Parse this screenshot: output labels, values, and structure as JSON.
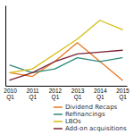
{
  "chart_data": {
    "type": "line",
    "categories": [
      "2010\nQ1",
      "2011\nQ1",
      "2012\nQ1",
      "2013\nQ1",
      "2014\nQ1",
      "2015\nQ1"
    ],
    "series": [
      {
        "name": "Dividend Recaps",
        "color": "#E87820",
        "values": [
          22,
          20,
          28,
          38,
          28,
          18
        ]
      },
      {
        "name": "Refinancings",
        "color": "#2E8B7A",
        "values": [
          26,
          22,
          24,
          30,
          28,
          30
        ]
      },
      {
        "name": "LBOs",
        "color": "#D4BE10",
        "values": [
          22,
          24,
          32,
          40,
          50,
          45
        ]
      },
      {
        "name": "Add-on acquisitions",
        "color": "#7B2030",
        "values": [
          18,
          22,
          28,
          32,
          33,
          34
        ]
      }
    ],
    "ylim": [
      15,
      58
    ],
    "yticks": [],
    "grid": false,
    "tick_labels": "x",
    "legend": "lower right"
  }
}
